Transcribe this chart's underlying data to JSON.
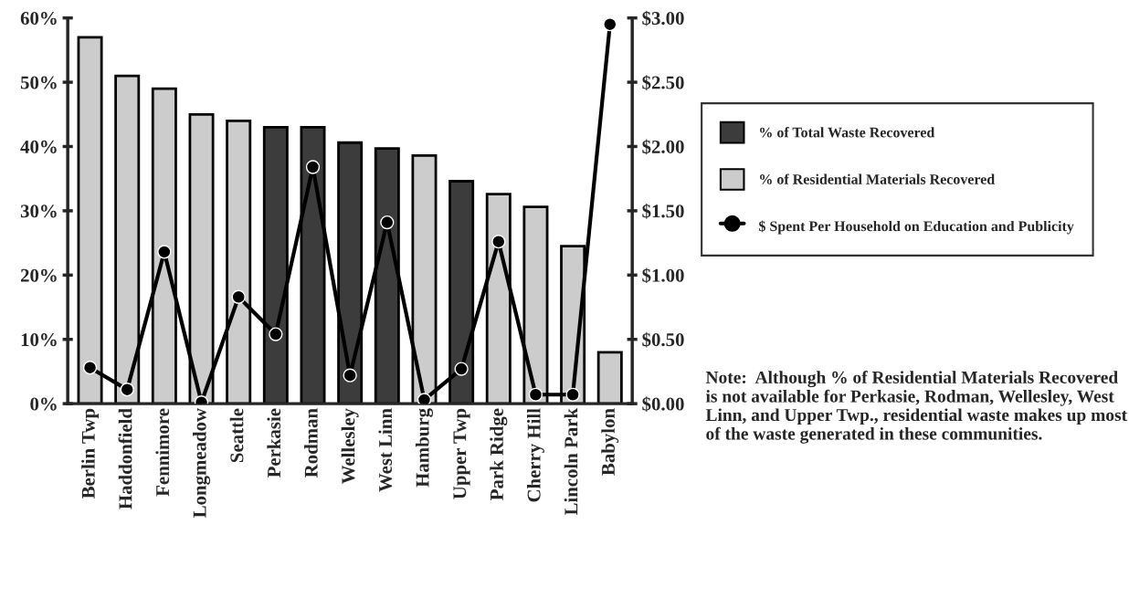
{
  "chart_data": {
    "type": "bar",
    "categories": [
      "Berlin Twp",
      "Haddonfield",
      "Fennimore",
      "Longmeadow",
      "Seattle",
      "Perkasie",
      "Rodman",
      "Wellesley",
      "West Linn",
      "Hamburg",
      "Upper Twp",
      "Park Ridge",
      "Cherry Hill",
      "Lincoln Park",
      "Babylon"
    ],
    "series": [
      {
        "name": "% of Total Waste Recovered",
        "color": "#3c3c3c",
        "values": [
          null,
          null,
          null,
          null,
          null,
          43,
          43,
          40.6,
          39.7,
          null,
          34.6,
          null,
          null,
          null,
          null
        ]
      },
      {
        "name": "% of Residential Materials Recovered",
        "color": "#cccccc",
        "values": [
          57,
          51,
          49,
          45,
          44,
          null,
          null,
          null,
          null,
          38.6,
          null,
          32.6,
          30.6,
          24.5,
          8
        ]
      },
      {
        "name": "$ Spent Per Household on Education and Publicity",
        "type": "line",
        "axis": "y2",
        "color": "#000000",
        "marker": "circle",
        "line_style": "solid",
        "values": [
          0.28,
          0.11,
          1.18,
          0.01,
          0.83,
          0.54,
          1.84,
          0.22,
          1.41,
          0.03,
          0.27,
          1.26,
          0.07,
          0.07,
          2.95
        ]
      }
    ],
    "ylim": [
      0,
      60
    ],
    "yticks": [
      {
        "value": 0,
        "label": "0%"
      },
      {
        "value": 10,
        "label": "10%"
      },
      {
        "value": 20,
        "label": "20%"
      },
      {
        "value": 30,
        "label": "30%"
      },
      {
        "value": 40,
        "label": "40%"
      },
      {
        "value": 50,
        "label": "50%"
      },
      {
        "value": 60,
        "label": "60%"
      }
    ],
    "y2lim": [
      0,
      3
    ],
    "y2ticks": [
      {
        "value": 0,
        "label": "$0.00"
      },
      {
        "value": 0.5,
        "label": "$0.50"
      },
      {
        "value": 1,
        "label": "$1.00"
      },
      {
        "value": 1.5,
        "label": "$1.50"
      },
      {
        "value": 2,
        "label": "$2.00"
      },
      {
        "value": 2.5,
        "label": "$2.50"
      },
      {
        "value": 3,
        "label": "$3.00"
      }
    ],
    "grid": false,
    "legend": "right",
    "annotations": [
      "Note:  Although % of Residential Materials Recovered is not available for Perkasie, Rodman, Wellesley, West Linn, and Upper Twp., residential waste makes up most of the waste generated in these communities."
    ]
  }
}
